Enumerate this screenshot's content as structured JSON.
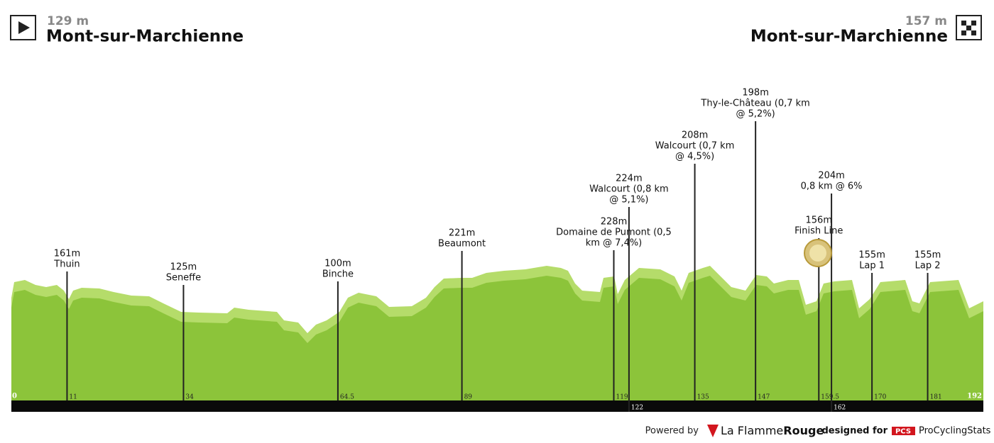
{
  "start": {
    "altitude": "129 m",
    "name": "Mont-sur-Marchienne"
  },
  "finish": {
    "altitude": "157 m",
    "name": "Mont-sur-Marchienne"
  },
  "km_start": 0,
  "km_end": 192,
  "markers": [
    {
      "km": 11,
      "altitude": "161m",
      "label": [
        "Thuin"
      ]
    },
    {
      "km": 34,
      "altitude": "125m",
      "label": [
        "Seneffe"
      ]
    },
    {
      "km": 64.5,
      "altitude": "100m",
      "label": [
        "Binche"
      ]
    },
    {
      "km": 89,
      "altitude": "221m",
      "label": [
        "Beaumont"
      ]
    },
    {
      "km": 119,
      "altitude": "228m",
      "label": [
        "Domaine de Pumont (0,5",
        "km @ 7,4%)"
      ]
    },
    {
      "km": 122,
      "altitude": "224m",
      "label": [
        "Walcourt (0,8 km",
        "@ 5,1%)"
      ]
    },
    {
      "km": 135,
      "altitude": "208m",
      "label": [
        "Walcourt (0,7 km",
        "@ 4,5%)"
      ]
    },
    {
      "km": 147,
      "altitude": "198m",
      "label": [
        "Thy-le-Château (0,7 km",
        "@ 5,2%)"
      ]
    },
    {
      "km": 159.5,
      "altitude": "156m",
      "label": [
        "Finish Line"
      ]
    },
    {
      "km": 162,
      "altitude": "204m",
      "label": [
        "0,8 km @ 6%"
      ]
    },
    {
      "km": 170,
      "altitude": "155m",
      "label": [
        "Lap 1"
      ]
    },
    {
      "km": 181,
      "altitude": "155m",
      "label": [
        "Lap 2"
      ]
    }
  ],
  "footer": {
    "powered_by": "Powered by",
    "brand_a": "La Flamme",
    "brand_b": "Rouge",
    "designed_for": "designed for",
    "pcs": "PCS",
    "site": "ProCyclingStats"
  }
}
